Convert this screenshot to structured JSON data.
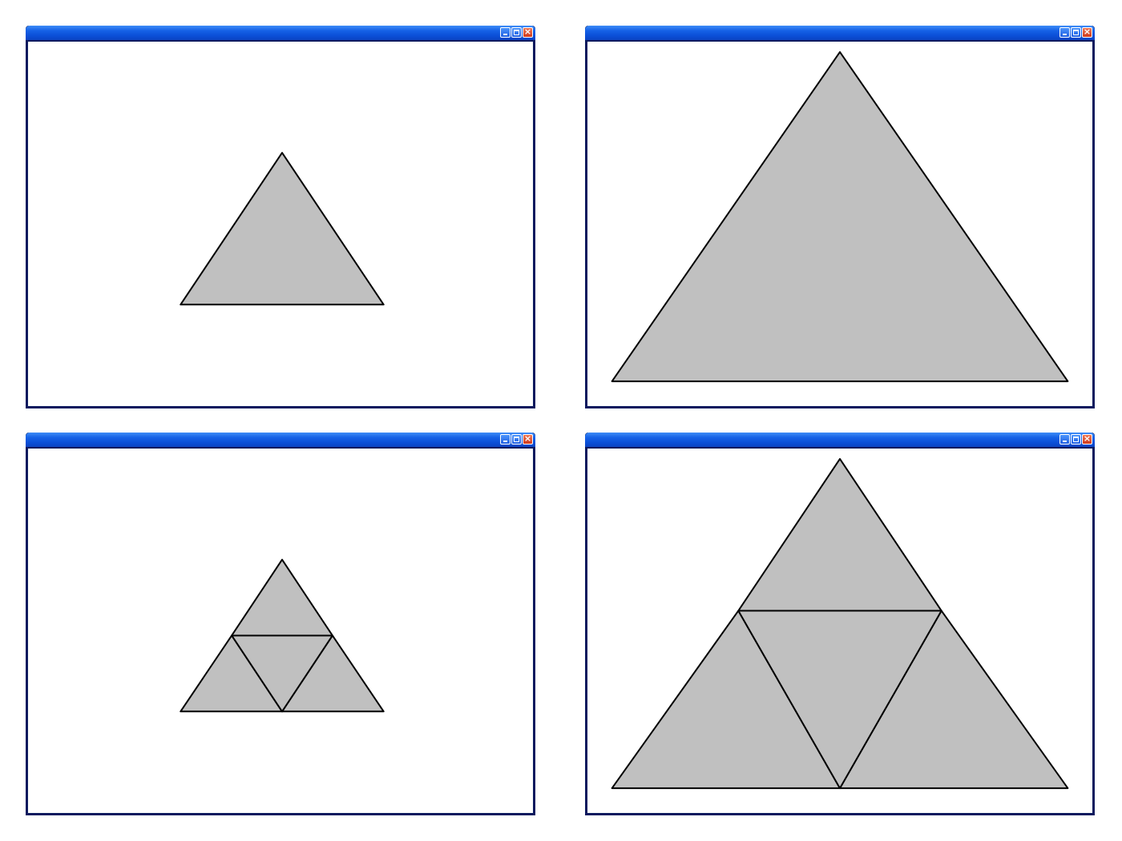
{
  "windows": [
    {
      "id": "top-left",
      "triangles": [
        "outer"
      ]
    },
    {
      "id": "top-right",
      "triangles": [
        "outer"
      ]
    },
    {
      "id": "bottom-left",
      "triangles": [
        "top",
        "left",
        "right",
        "center"
      ]
    },
    {
      "id": "bottom-right",
      "triangles": [
        "top",
        "left",
        "right",
        "center"
      ]
    }
  ],
  "colors": {
    "triangle_fill": "#c0c0c0",
    "triangle_stroke": "#000000",
    "titlebar": "#0b4fd7",
    "frame": "#0a1a5e",
    "close_button": "#d0391b"
  },
  "icons": {
    "minimize": "minimize-icon",
    "maximize": "maximize-icon",
    "close": "close-icon"
  }
}
